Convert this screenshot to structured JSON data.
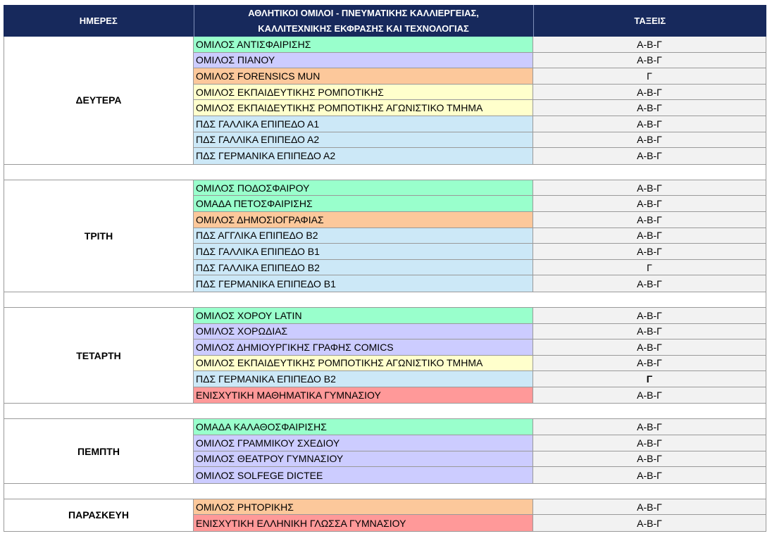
{
  "headers": {
    "days": "ΗΜΕΡΕΣ",
    "clubs_line1": "ΑΘΛΗΤΙΚΟΙ ΟΜΙΛΟΙ - ΠΝΕΥΜΑΤΙΚΗΣ ΚΑΛΛΙΕΡΓΕΙΑΣ,",
    "clubs_line2": "ΚΑΛΛΙΤΕΧΝΙΚΗΣ ΕΚΦΡΑΣΗΣ ΚΑΙ ΤΕΧΝΟΛΟΓΙΑΣ",
    "classes": "ΤΑΞΕΙΣ"
  },
  "colors": {
    "header": "#17295c",
    "sports": "#99ffcc",
    "arts": "#ccccff",
    "orange": "#fcc89b",
    "yellow": "#ffffcc",
    "blue": "#cce8f7",
    "red": "#ff9999",
    "classes_bg": "#f2f2f2"
  },
  "days": [
    {
      "day": "ΔΕΥΤΕΡΑ",
      "items": [
        {
          "name": "ΟΜΙΛΟΣ ΑΝΤΙΣΦΑΙΡΙΣΗΣ",
          "classes": "Α-Β-Γ",
          "color": "sports"
        },
        {
          "name": "ΟΜΙΛΟΣ ΠΙΑΝΟΥ",
          "classes": "Α-Β-Γ",
          "color": "arts"
        },
        {
          "name": "ΟΜΙΛΟΣ FORENSICS MUN",
          "classes": "Γ",
          "color": "orange"
        },
        {
          "name": "ΟΜΙΛΟΣ ΕΚΠΑΙΔΕΥΤΙΚΗΣ ΡΟΜΠΟΤΙΚΗΣ",
          "classes": "Α-Β-Γ",
          "color": "yellow"
        },
        {
          "name": "ΟΜΙΛΟΣ ΕΚΠΑΙΔΕΥΤΙΚΗΣ ΡΟΜΠΟΤΙΚΗΣ ΑΓΩΝΙΣΤΙΚΟ ΤΜΗΜΑ",
          "classes": "Α-Β-Γ",
          "color": "yellow"
        },
        {
          "name": "ΠΔΣ ΓΑΛΛΙΚΑ ΕΠΙΠΕΔΟ Α1",
          "classes": "Α-Β-Γ",
          "color": "blue"
        },
        {
          "name": "ΠΔΣ ΓΑΛΛΙΚΑ ΕΠΙΠΕΔΟ Α2",
          "classes": "Α-Β-Γ",
          "color": "blue"
        },
        {
          "name": "ΠΔΣ ΓΕΡΜΑΝΙΚΑ ΕΠΙΠΕΔΟ Α2",
          "classes": "Α-Β-Γ",
          "color": "blue"
        }
      ]
    },
    {
      "day": "ΤΡΙΤΗ",
      "items": [
        {
          "name": "ΟΜΙΛΟΣ ΠΟΔΟΣΦΑΙΡΟΥ",
          "classes": "Α-Β-Γ",
          "color": "sports"
        },
        {
          "name": "ΟΜΑΔΑ ΠΕΤΟΣΦΑΙΡΙΣΗΣ",
          "classes": "Α-Β-Γ",
          "color": "sports"
        },
        {
          "name": "ΟΜΙΛΟΣ ΔΗΜΟΣΙΟΓΡΑΦΙΑΣ",
          "classes": "Α-Β-Γ",
          "color": "orange"
        },
        {
          "name": "ΠΔΣ ΑΓΓΛΙΚΑ ΕΠΙΠΕΔΟ Β2",
          "classes": "Α-Β-Γ",
          "color": "blue"
        },
        {
          "name": "ΠΔΣ ΓΑΛΛΙΚΑ ΕΠΙΠΕΔΟ Β1",
          "classes": "Α-Β-Γ",
          "color": "blue"
        },
        {
          "name": "ΠΔΣ ΓΑΛΛΙΚΑ ΕΠΙΠΕΔΟ Β2",
          "classes": "Γ",
          "color": "blue"
        },
        {
          "name": "ΠΔΣ ΓΕΡΜΑΝΙΚΑ ΕΠΙΠΕΔΟ Β1",
          "classes": "Α-Β-Γ",
          "color": "blue"
        }
      ]
    },
    {
      "day": "ΤΕΤΑΡΤΗ",
      "items": [
        {
          "name": "ΟΜΙΛΟΣ ΧΟΡΟΥ LATIN",
          "classes": "Α-Β-Γ",
          "color": "sports"
        },
        {
          "name": "ΟΜΙΛΟΣ ΧΟΡΩΔΙΑΣ",
          "classes": "Α-Β-Γ",
          "color": "arts"
        },
        {
          "name": "ΟΜΙΛΟΣ ΔΗΜΙΟΥΡΓΙΚΗΣ ΓΡΑΦΗΣ COMICS",
          "classes": "Α-Β-Γ",
          "color": "arts"
        },
        {
          "name": "ΟΜΙΛΟΣ ΕΚΠΑΙΔΕΥΤΙΚΗΣ ΡΟΜΠΟΤΙΚΗΣ ΑΓΩΝΙΣΤΙΚΟ ΤΜΗΜΑ",
          "classes": "Α-Β-Γ",
          "color": "yellow"
        },
        {
          "name": "ΠΔΣ ΓΕΡΜΑΝΙΚΑ ΕΠΙΠΕΔΟ Β2",
          "classes": "Γ",
          "color": "blue",
          "bold": true
        },
        {
          "name": "ΕΝΙΣΧΥΤΙΚΗ ΜΑΘΗΜΑΤΙΚΑ ΓΥΜΝΑΣΙΟΥ",
          "classes": "Α-Β-Γ",
          "color": "red"
        }
      ]
    },
    {
      "day": "ΠΕΜΠΤΗ",
      "items": [
        {
          "name": "ΟΜΑΔΑ ΚΑΛΑΘΟΣΦΑΙΡΙΣΗΣ",
          "classes": "Α-Β-Γ",
          "color": "sports"
        },
        {
          "name": "ΟΜΙΛΟΣ ΓΡΑΜΜΙΚΟΥ ΣΧΕΔΙΟΥ",
          "classes": "Α-Β-Γ",
          "color": "arts"
        },
        {
          "name": "ΟΜΙΛΟΣ ΘΕΑΤΡΟΥ ΓΥΜΝΑΣΙΟΥ",
          "classes": "Α-Β-Γ",
          "color": "arts"
        },
        {
          "name": "ΟΜΙΛΟΣ SOLFEGE DICTEE",
          "classes": "Α-Β-Γ",
          "color": "arts"
        }
      ]
    },
    {
      "day": "ΠΑΡΑΣΚΕΥΗ",
      "items": [
        {
          "name": "ΟΜΙΛΟΣ ΡΗΤΟΡΙΚΗΣ",
          "classes": "Α-Β-Γ",
          "color": "orange"
        },
        {
          "name": "ΕΝΙΣΧΥΤΙΚΗ ΕΛΛΗΝΙΚΗ ΓΛΩΣΣΑ ΓΥΜΝΑΣΙΟΥ",
          "classes": "Α-Β-Γ",
          "color": "red"
        }
      ]
    }
  ]
}
